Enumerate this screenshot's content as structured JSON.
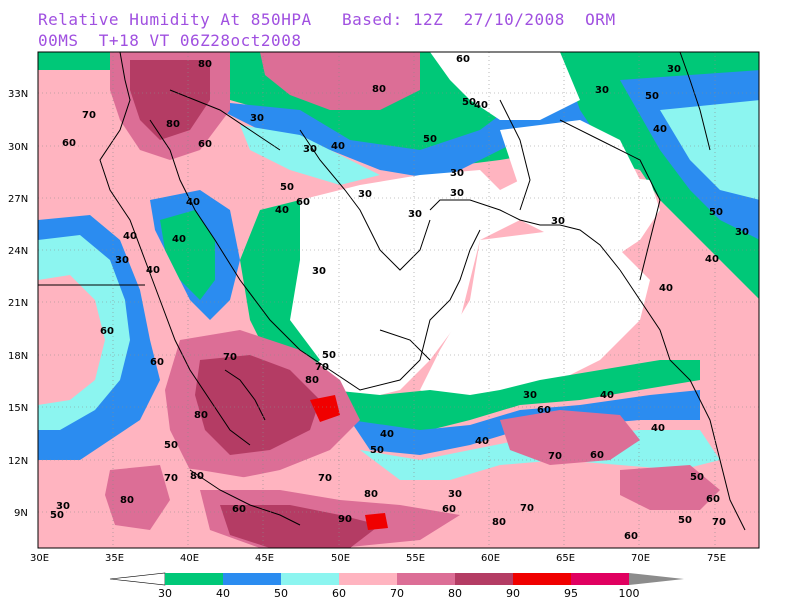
{
  "header": {
    "line1": "Relative Humidity At 850HPA   Based: 12Z  27/10/2008  ORM",
    "line2": "00MS  T+18 VT 06Z28oct2008"
  },
  "axes": {
    "lat_labels": [
      "33N",
      "30N",
      "27N",
      "24N",
      "21N",
      "18N",
      "15N",
      "12N",
      "9N"
    ],
    "lon_labels": [
      "30E",
      "35E",
      "40E",
      "45E",
      "50E",
      "55E",
      "60E",
      "65E",
      "70E",
      "75E"
    ]
  },
  "legend": {
    "levels": [
      "30",
      "40",
      "50",
      "60",
      "70",
      "80",
      "90",
      "95",
      "100"
    ],
    "colors": [
      "#00c878",
      "#2b8cf0",
      "#8cf5f0",
      "#ffb4c0",
      "#dc6e96",
      "#b43c64",
      "#f00000",
      "#e00060"
    ],
    "low_color": "#ffffff",
    "high_color": "#8c8c8c"
  },
  "contour_labels": [
    {
      "text": "80"
    },
    {
      "text": "60"
    },
    {
      "text": "30"
    },
    {
      "text": "50"
    },
    {
      "text": "70"
    },
    {
      "text": "80"
    },
    {
      "text": "80"
    },
    {
      "text": "60"
    },
    {
      "text": "50"
    },
    {
      "text": "40"
    },
    {
      "text": "30"
    },
    {
      "text": "40"
    },
    {
      "text": "50"
    },
    {
      "text": "30"
    },
    {
      "text": "40"
    },
    {
      "text": "30"
    },
    {
      "text": "40"
    },
    {
      "text": "60"
    },
    {
      "text": "40"
    },
    {
      "text": "30"
    },
    {
      "text": "30"
    },
    {
      "text": "50"
    },
    {
      "text": "30"
    },
    {
      "text": "30"
    },
    {
      "text": "60"
    },
    {
      "text": "30"
    },
    {
      "text": "40"
    },
    {
      "text": "40"
    },
    {
      "text": "40"
    },
    {
      "text": "40"
    },
    {
      "text": "40"
    },
    {
      "text": "30"
    },
    {
      "text": "60"
    },
    {
      "text": "50"
    },
    {
      "text": "60"
    },
    {
      "text": "70"
    },
    {
      "text": "80"
    },
    {
      "text": "80"
    },
    {
      "text": "70"
    },
    {
      "text": "50"
    },
    {
      "text": "30"
    },
    {
      "text": "30"
    },
    {
      "text": "50"
    },
    {
      "text": "40"
    },
    {
      "text": "50"
    },
    {
      "text": "30"
    },
    {
      "text": "40"
    },
    {
      "text": "60"
    },
    {
      "text": "80"
    },
    {
      "text": "90"
    },
    {
      "text": "70"
    },
    {
      "text": "80"
    },
    {
      "text": "60"
    },
    {
      "text": "70"
    },
    {
      "text": "60"
    },
    {
      "text": "80"
    },
    {
      "text": "40"
    },
    {
      "text": "50"
    },
    {
      "text": "40"
    },
    {
      "text": "60"
    },
    {
      "text": "70"
    },
    {
      "text": "50"
    },
    {
      "text": "50"
    },
    {
      "text": "60"
    },
    {
      "text": "70"
    },
    {
      "text": "60"
    },
    {
      "text": "80"
    },
    {
      "text": "30"
    },
    {
      "text": "70"
    },
    {
      "text": "30"
    }
  ]
}
